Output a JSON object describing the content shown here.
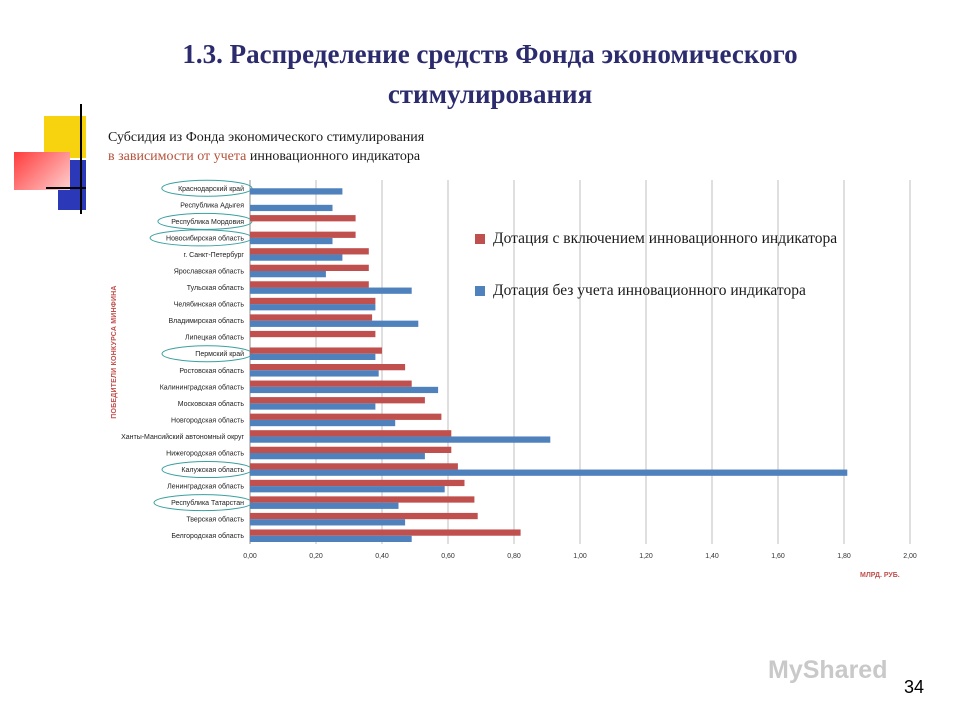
{
  "slide": {
    "title": "1.3. Распределение средств Фонда экономического стимулирования",
    "subtitle_line1": "Субсидия из Фонда экономического стимулирования",
    "subtitle_line2_highlight": "в зависимости от учета",
    "subtitle_line2_rest": " инновационного индикатора",
    "vertical_label": "ПОБЕДИТЕЛИ КОНКУРСА МИНФИНА",
    "units": "МЛРД. РУБ.",
    "slide_number": "34",
    "watermark": "MyShared"
  },
  "colors": {
    "red_series": "#c0504d",
    "blue_series": "#4f81bd",
    "title": "#2b2b6e"
  },
  "chart_data": {
    "type": "bar",
    "orientation": "horizontal",
    "categories": [
      "Краснодарский край",
      "Республика Адыгея",
      "Республика Мордовия",
      "Новосибирская область",
      "г. Санкт-Петербург",
      "Ярославская область",
      "Тульская область",
      "Челябинская область",
      "Владимирская область",
      "Липецкая область",
      "Пермский край",
      "Ростовская область",
      "Калининградская область",
      "Московская область",
      "Новгородская область",
      "Ханты-Мансийский автономный округ",
      "Нижегородская область",
      "Калужская область",
      "Ленинградская область",
      "Республика Татарстан",
      "Тверская область",
      "Белгородская область"
    ],
    "circled_categories": [
      "Краснодарский край",
      "Республика Мордовия",
      "Новосибирская область",
      "Пермский край",
      "Калужская область",
      "Республика Татарстан"
    ],
    "series": [
      {
        "name": "Дотация с включением инновационного индикатора",
        "color": "#c0504d",
        "values": [
          0,
          0,
          0.32,
          0.32,
          0.36,
          0.36,
          0.36,
          0.38,
          0.37,
          0.38,
          0.4,
          0.47,
          0.49,
          0.53,
          0.58,
          0.61,
          0.61,
          0.63,
          0.65,
          0.68,
          0.69,
          0.82
        ]
      },
      {
        "name": "Дотация без учета инновационного индикатора",
        "color": "#4f81bd",
        "values": [
          0.28,
          0.25,
          0,
          0.25,
          0.28,
          0.23,
          0.49,
          0.38,
          0.51,
          0,
          0.38,
          0.39,
          0.57,
          0.38,
          0.44,
          0.91,
          0.53,
          1.81,
          0.59,
          0.45,
          0.47,
          0.49
        ]
      }
    ],
    "x_ticks": [
      "0,00",
      "0,20",
      "0,40",
      "0,60",
      "0,80",
      "1,00",
      "1,20",
      "1,40",
      "1,60",
      "1,80",
      "2,00"
    ],
    "xlim": [
      0,
      2
    ],
    "xlabel": "МЛРД. РУБ.",
    "ylabel": "ПОБЕДИТЕЛИ КОНКУРСА МИНФИНА",
    "grid": true,
    "legend_position": "right"
  }
}
